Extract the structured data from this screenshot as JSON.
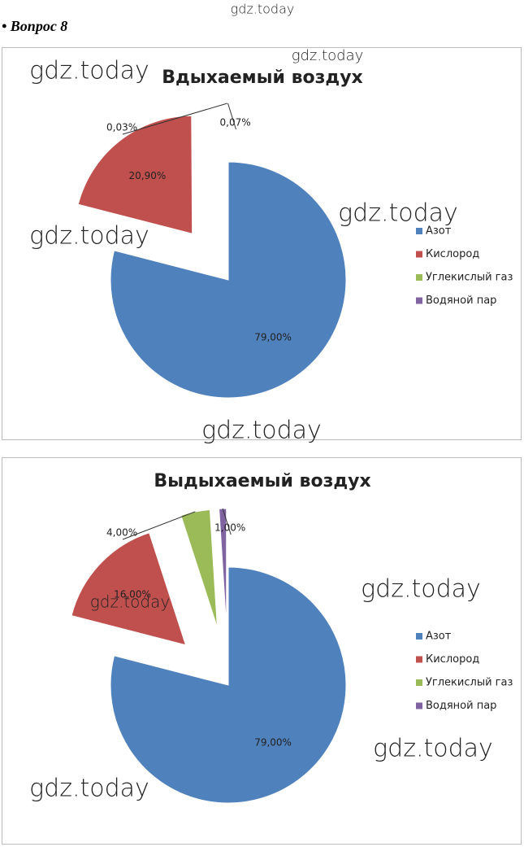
{
  "heading": "• Вопрос 8",
  "watermarks": [
    "gdz.today",
    "gdz.today",
    "gdz.today",
    "gdz.today",
    "gdz.today",
    "gdz.today",
    "gdz.today",
    "gdz.today",
    "gdz.today",
    "gdz.today"
  ],
  "chart_data": [
    {
      "type": "pie",
      "title": "Вдыхаемый воздух",
      "categories": [
        "Азот",
        "Кислород",
        "Углекислый газ",
        "Водяной пар"
      ],
      "values": [
        79.0,
        20.9,
        0.03,
        0.07
      ],
      "value_labels": [
        "79,00%",
        "20,90%",
        "0,03%",
        "0,07%"
      ],
      "colors": [
        "#4f81bd",
        "#c0504d",
        "#9bbb59",
        "#8064a2"
      ],
      "legend": "right"
    },
    {
      "type": "pie",
      "title": "Выдыхаемый воздух",
      "categories": [
        "Азот",
        "Кислород",
        "Углекислый газ",
        "Водяной пар"
      ],
      "values": [
        79.0,
        16.0,
        4.0,
        1.0
      ],
      "value_labels": [
        "79,00%",
        "16,00%",
        "4,00%",
        "1,00%"
      ],
      "colors": [
        "#4f81bd",
        "#c0504d",
        "#9bbb59",
        "#8064a2"
      ],
      "legend": "right"
    }
  ]
}
